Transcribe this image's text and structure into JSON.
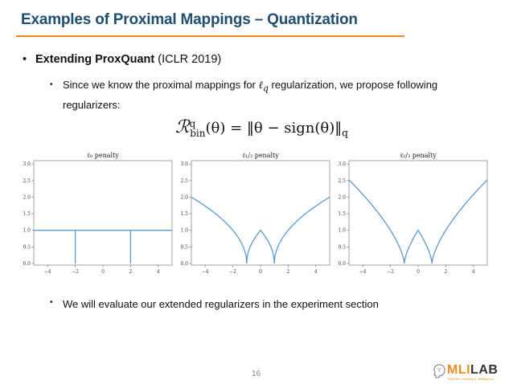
{
  "slide": {
    "title": "Examples of Proximal Mappings – Quantization",
    "accent_color": "#f08c1e",
    "title_color": "#1f4e6e",
    "page_number": "16"
  },
  "bullets": {
    "b1_bold": "Extending ProxQuant",
    "b1_rest": " (ICLR 2019)",
    "b2_pre": "Since we know the proximal mappings for ",
    "b2_ell": "ℓ",
    "b2_sub": "q",
    "b2_post": " regularization, we propose following regularizers:",
    "b3": "We will evaluate our extended regularizers in the experiment section",
    "bullet_glyph": "•"
  },
  "formula": {
    "R": "ℛ",
    "sup": "q",
    "sub": "bin",
    "body": "(θ) = ‖θ − sign(θ)‖",
    "norm_sub": "q"
  },
  "logo": {
    "mli": "MLI",
    "lab": "LAB",
    "tagline": "Machine Learning & Intelligence"
  },
  "chart_data": [
    {
      "type": "line",
      "title": "ℓ₀ penalty",
      "xlabel": "",
      "ylabel": "",
      "xlim": [
        -5,
        5
      ],
      "ylim": [
        -0.05,
        3.1
      ],
      "xticks": [
        -4,
        -2,
        0,
        2,
        4
      ],
      "yticks": [
        0.0,
        0.5,
        1.0,
        1.5,
        2.0,
        2.5,
        3.0
      ],
      "grid": false,
      "line_color": "#5a9bd4",
      "x": [
        -5,
        -2,
        -2,
        -2,
        2,
        2,
        2,
        5
      ],
      "y": [
        1,
        1,
        0,
        1,
        1,
        0,
        1,
        1
      ]
    },
    {
      "type": "line",
      "title": "ℓ₁/₂ penalty",
      "xlabel": "",
      "ylabel": "",
      "xlim": [
        -5,
        5
      ],
      "ylim": [
        -0.05,
        3.1
      ],
      "xticks": [
        -4,
        -2,
        0,
        2,
        4
      ],
      "yticks": [
        0.0,
        0.5,
        1.0,
        1.5,
        2.0,
        2.5,
        3.0
      ],
      "grid": false,
      "line_color": "#5a9bd4",
      "q": 0.5,
      "x": [
        -5,
        -3,
        -2,
        -1,
        -0.5,
        0,
        0.5,
        1,
        2,
        3,
        5
      ],
      "y": [
        2.0,
        1.41,
        1.0,
        0.0,
        0.71,
        1.0,
        0.71,
        0.0,
        1.0,
        1.41,
        2.0
      ]
    },
    {
      "type": "line",
      "title": "ℓ₂/₃ penalty",
      "xlabel": "",
      "ylabel": "",
      "xlim": [
        -5,
        5
      ],
      "ylim": [
        -0.05,
        3.1
      ],
      "xticks": [
        -4,
        -2,
        0,
        2,
        4
      ],
      "yticks": [
        0.0,
        0.5,
        1.0,
        1.5,
        2.0,
        2.5,
        3.0
      ],
      "grid": false,
      "line_color": "#5a9bd4",
      "q": 0.6667,
      "x": [
        -5,
        -3,
        -2,
        -1,
        -0.5,
        0,
        0.5,
        1,
        2,
        3,
        5
      ],
      "y": [
        2.52,
        1.59,
        1.0,
        0.0,
        0.63,
        1.0,
        0.63,
        0.0,
        1.0,
        1.59,
        2.52
      ]
    }
  ]
}
